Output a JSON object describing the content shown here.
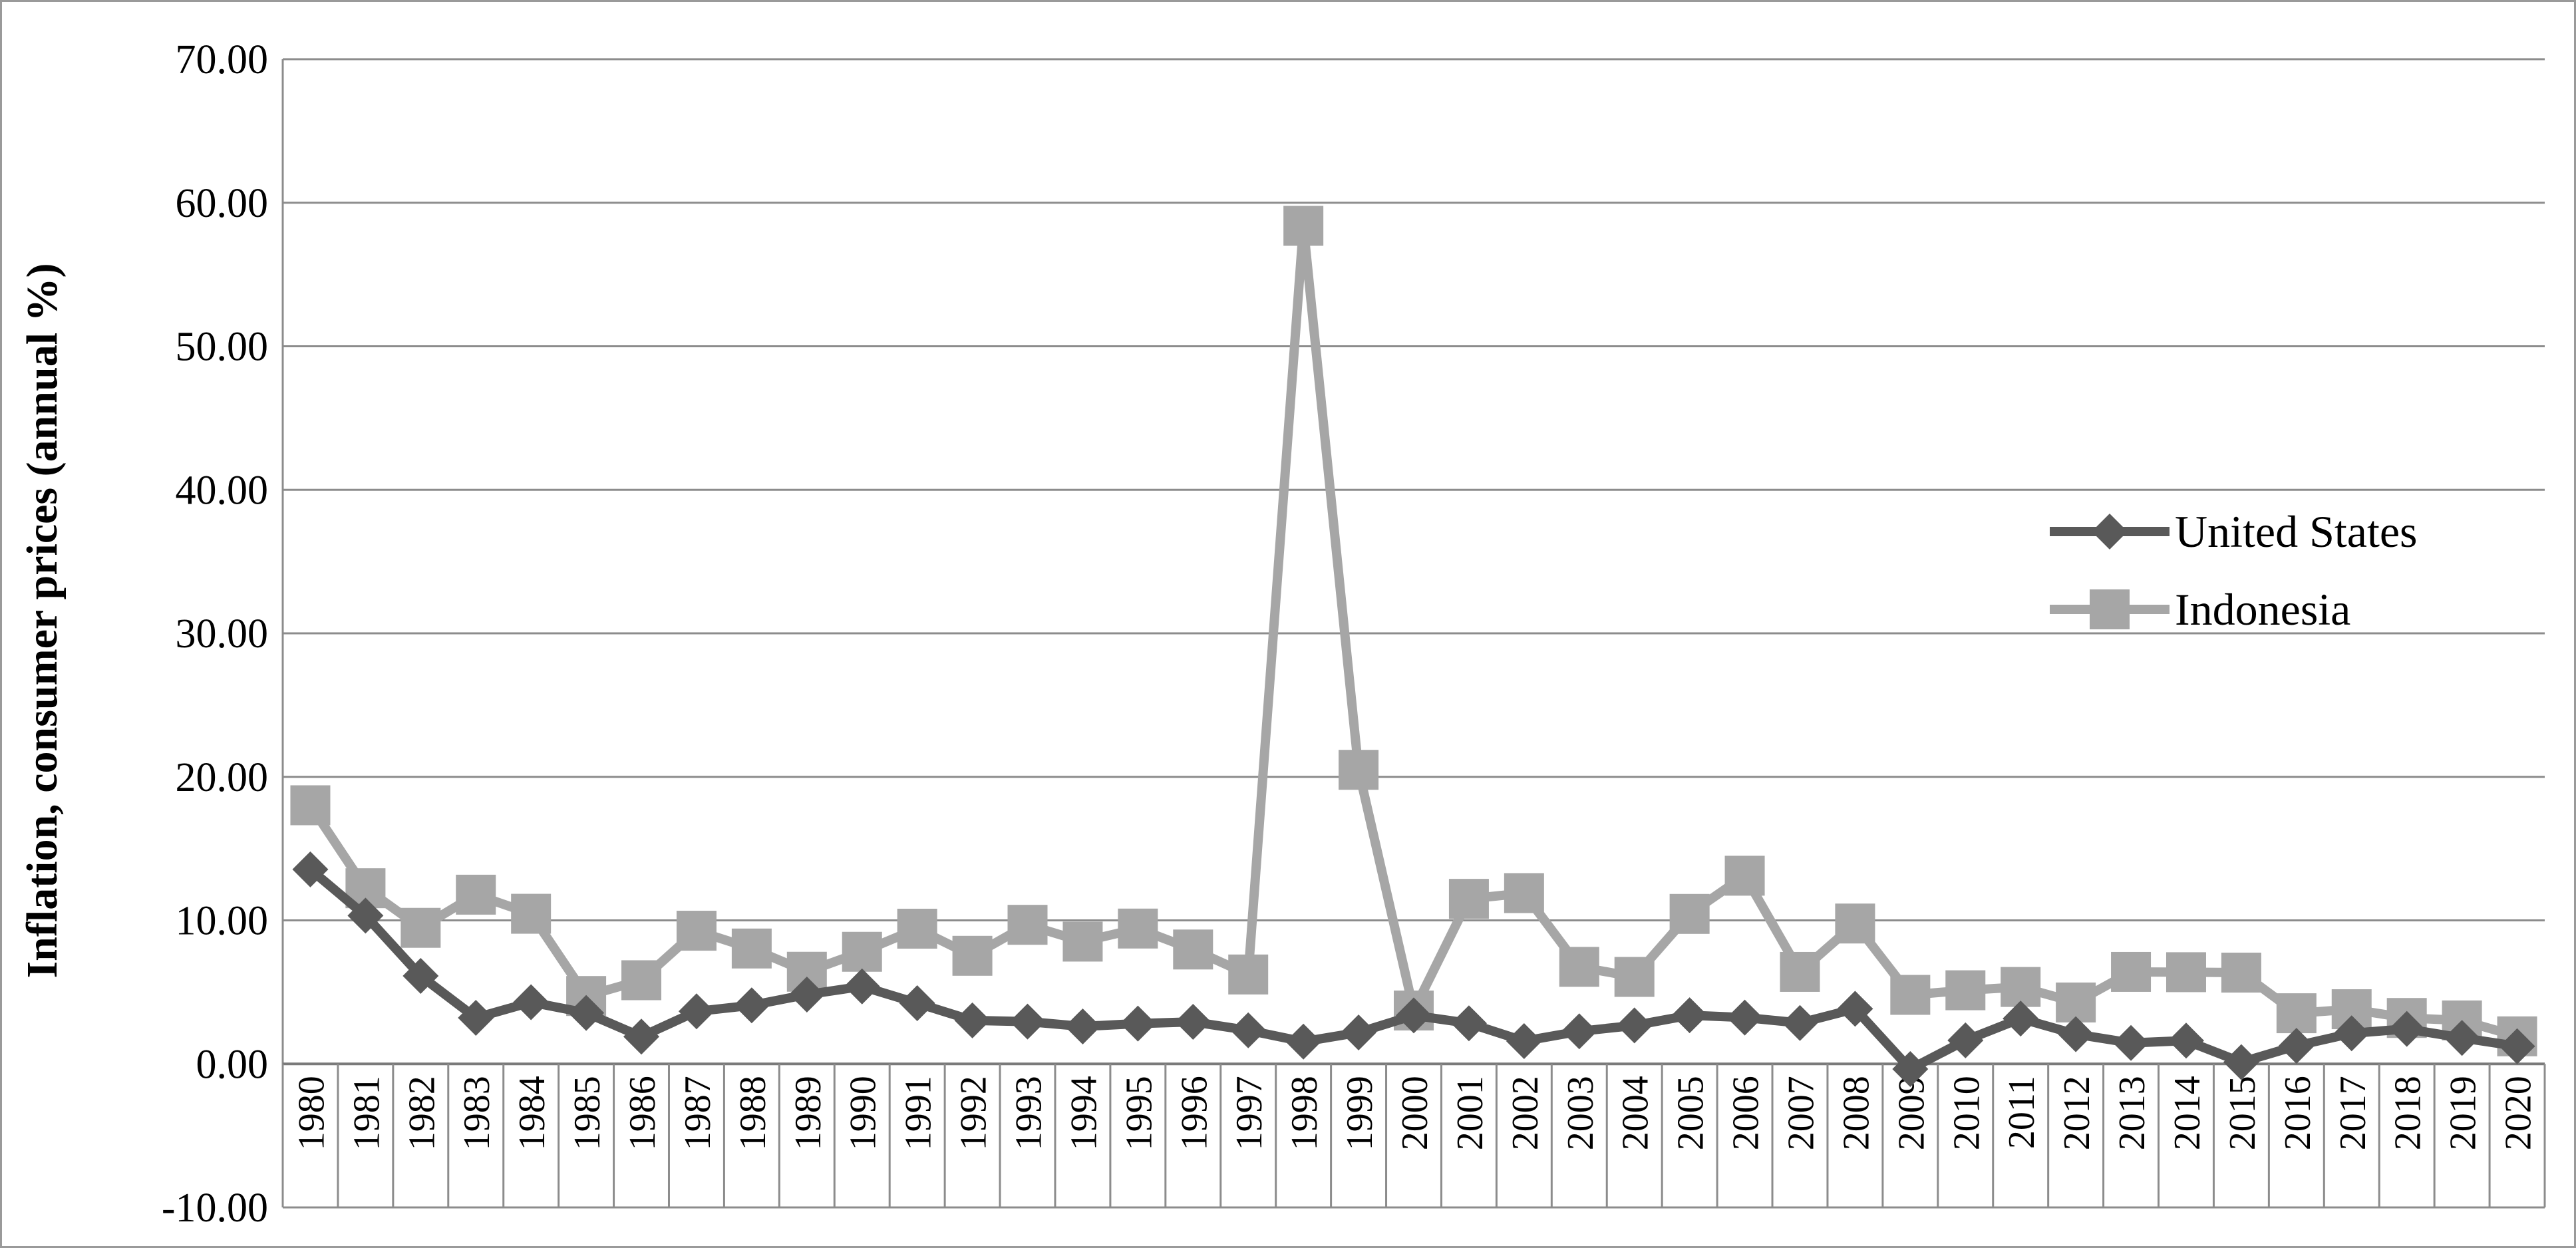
{
  "chart_data": {
    "type": "line",
    "title": "",
    "xlabel": "",
    "ylabel": "Inflation, consumer prices (annual %)",
    "ylim": [
      -10,
      70
    ],
    "yticks": [
      "70.00",
      "60.00",
      "50.00",
      "40.00",
      "30.00",
      "20.00",
      "10.00",
      "0.00",
      "-10.00"
    ],
    "ytick_values": [
      70,
      60,
      50,
      40,
      30,
      20,
      10,
      0,
      -10
    ],
    "grid": true,
    "legend_position": "right",
    "x": [
      "1980",
      "1981",
      "1982",
      "1983",
      "1984",
      "1985",
      "1986",
      "1987",
      "1988",
      "1989",
      "1990",
      "1991",
      "1992",
      "1993",
      "1994",
      "1995",
      "1996",
      "1997",
      "1998",
      "1999",
      "2000",
      "2001",
      "2002",
      "2003",
      "2004",
      "2005",
      "2006",
      "2007",
      "2008",
      "2009",
      "2010",
      "2011",
      "2012",
      "2013",
      "2014",
      "2015",
      "2016",
      "2017",
      "2018",
      "2019",
      "2020"
    ],
    "series": [
      {
        "name": "United States",
        "color": "#595959",
        "marker": "diamond",
        "values": [
          13.55,
          10.33,
          6.13,
          3.21,
          4.3,
          3.55,
          1.9,
          3.66,
          4.08,
          4.83,
          5.4,
          4.23,
          3.03,
          2.95,
          2.61,
          2.81,
          2.93,
          2.34,
          1.55,
          2.19,
          3.38,
          2.83,
          1.59,
          2.27,
          2.68,
          3.39,
          3.23,
          2.85,
          3.84,
          -0.36,
          1.64,
          3.16,
          2.07,
          1.46,
          1.62,
          0.12,
          1.26,
          2.13,
          2.44,
          1.81,
          1.23
        ]
      },
      {
        "name": "Indonesia",
        "color": "#a6a6a6",
        "marker": "square",
        "values": [
          18.02,
          12.24,
          9.48,
          11.79,
          10.46,
          4.73,
          5.83,
          9.28,
          8.04,
          6.42,
          7.81,
          9.42,
          7.53,
          9.69,
          8.52,
          9.43,
          7.97,
          6.23,
          58.39,
          20.49,
          3.72,
          11.5,
          11.9,
          6.76,
          6.06,
          10.45,
          13.11,
          6.41,
          9.78,
          4.81,
          5.13,
          5.36,
          4.28,
          6.41,
          6.39,
          6.36,
          3.53,
          3.81,
          3.2,
          3.03,
          1.92
        ]
      }
    ]
  }
}
